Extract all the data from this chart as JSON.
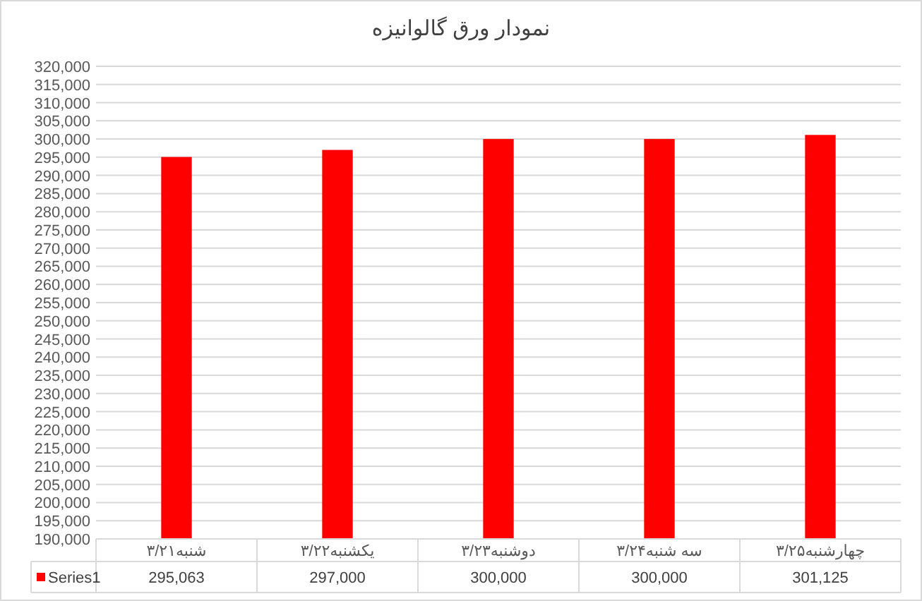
{
  "chart_data": {
    "type": "bar",
    "title": "نمودار ورق گالوانیزه",
    "categories": [
      "شنبه۳/۲۱",
      "یکشنبه۳/۲۲",
      "دوشنبه۳/۲۳",
      "سه شنبه۳/۲۴",
      "چهارشنبه۳/۲۵"
    ],
    "series": [
      {
        "name": "Series1",
        "color": "#ff0000",
        "values": [
          295063,
          297000,
          300000,
          300000,
          301125
        ],
        "value_labels": [
          "295,063",
          "297,000",
          "300,000",
          "300,000",
          "301,125"
        ]
      }
    ],
    "ylim": [
      190000,
      320000
    ],
    "yticks": [
      {
        "value": 190000,
        "label": "190,000"
      },
      {
        "value": 195000,
        "label": "195,000"
      },
      {
        "value": 200000,
        "label": "200,000"
      },
      {
        "value": 205000,
        "label": "205,000"
      },
      {
        "value": 210000,
        "label": "210,000"
      },
      {
        "value": 215000,
        "label": "215,000"
      },
      {
        "value": 220000,
        "label": "220,000"
      },
      {
        "value": 225000,
        "label": "225,000"
      },
      {
        "value": 230000,
        "label": "230,000"
      },
      {
        "value": 235000,
        "label": "235,000"
      },
      {
        "value": 240000,
        "label": "240,000"
      },
      {
        "value": 245000,
        "label": "245,000"
      },
      {
        "value": 250000,
        "label": "250,000"
      },
      {
        "value": 255000,
        "label": "255,000"
      },
      {
        "value": 260000,
        "label": "260,000"
      },
      {
        "value": 265000,
        "label": "265,000"
      },
      {
        "value": 270000,
        "label": "270,000"
      },
      {
        "value": 275000,
        "label": "275,000"
      },
      {
        "value": 280000,
        "label": "280,000"
      },
      {
        "value": 285000,
        "label": "285,000"
      },
      {
        "value": 290000,
        "label": "290,000"
      },
      {
        "value": 295000,
        "label": "295,000"
      },
      {
        "value": 300000,
        "label": "300,000"
      },
      {
        "value": 305000,
        "label": "305,000"
      },
      {
        "value": 310000,
        "label": "310,000"
      },
      {
        "value": 315000,
        "label": "315,000"
      },
      {
        "value": 320000,
        "label": "320,000"
      }
    ],
    "grid": "y",
    "legend": "bottom"
  }
}
